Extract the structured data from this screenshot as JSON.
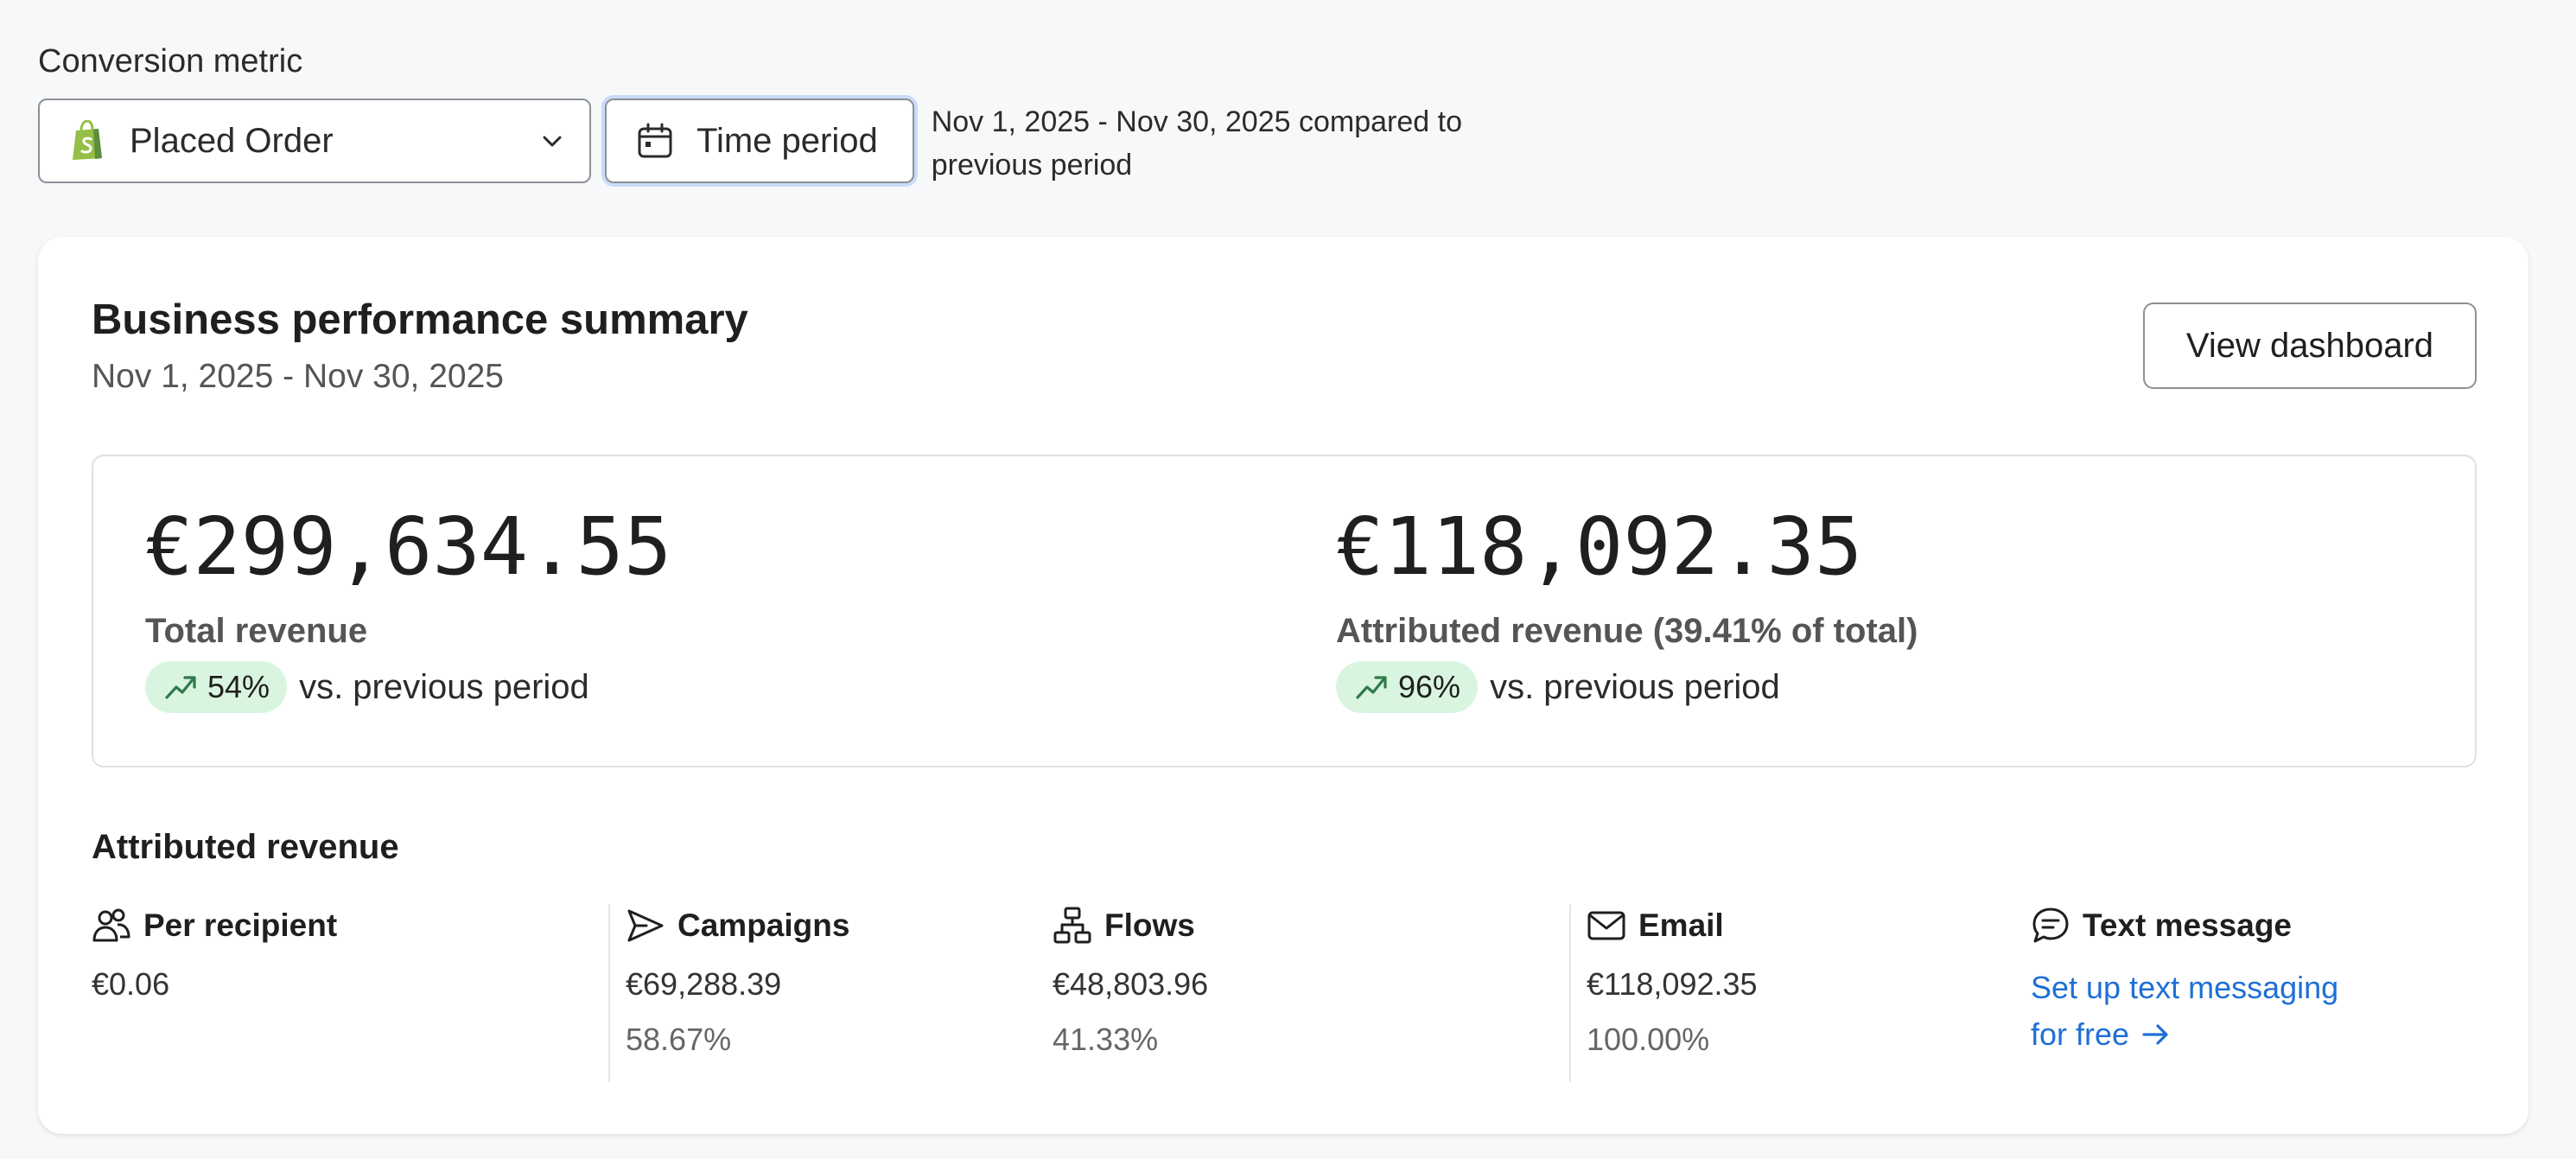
{
  "conversion": {
    "label": "Conversion metric",
    "selected_metric": "Placed Order",
    "time_button": "Time period",
    "period_description": "Nov 1, 2025 - Nov 30, 2025 compared to previous period"
  },
  "summary": {
    "title": "Business performance summary",
    "date_range": "Nov 1, 2025 - Nov 30, 2025",
    "view_button": "View dashboard",
    "total": {
      "value": "€299,634.55",
      "label": "Total revenue",
      "change": "54%",
      "change_text": "vs. previous period"
    },
    "attributed": {
      "value": "€118,092.35",
      "label": "Attributed revenue (39.41% of total)",
      "change": "96%",
      "change_text": "vs. previous period"
    }
  },
  "attributed_revenue": {
    "title": "Attributed revenue",
    "per_recipient": {
      "label": "Per recipient",
      "value": "€0.06"
    },
    "campaigns": {
      "label": "Campaigns",
      "value": "€69,288.39",
      "percent": "58.67%"
    },
    "flows": {
      "label": "Flows",
      "value": "€48,803.96",
      "percent": "41.33%"
    },
    "email": {
      "label": "Email",
      "value": "€118,092.35",
      "percent": "100.00%"
    },
    "text_message": {
      "label": "Text message",
      "link_line1": "Set up text messaging",
      "link_line2": "for free"
    }
  },
  "colors": {
    "accent_link": "#1f6fd6",
    "badge_bg": "#d9f5df",
    "shopify_green": "#95bf47",
    "focus_ring": "#c9dcf7"
  }
}
